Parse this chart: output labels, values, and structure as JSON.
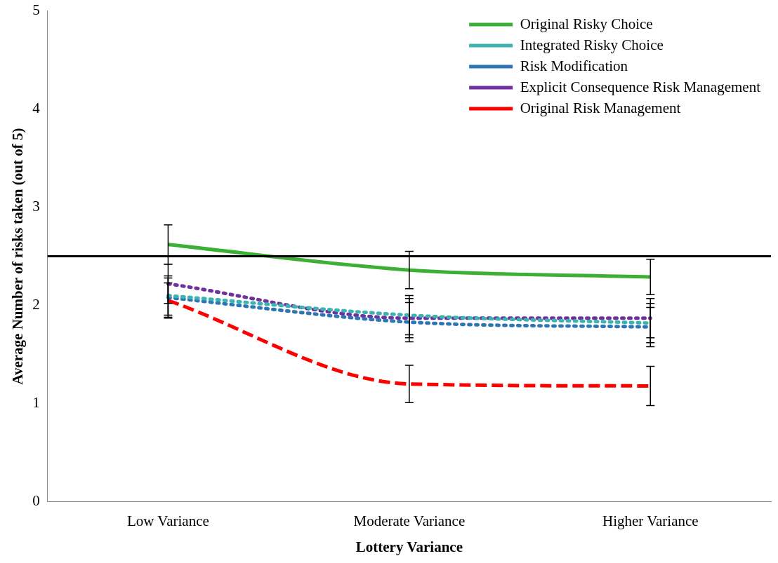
{
  "chart_data": {
    "type": "line",
    "xlabel": "Lottery Variance",
    "ylabel": "Average Number of risks taken (out of 5)",
    "categories": [
      "Low Variance",
      "Moderate Variance",
      "Higher Variance"
    ],
    "series": [
      {
        "name": "Original Risky Choice",
        "color": "#3cb034",
        "values": [
          2.62,
          2.36,
          2.29
        ],
        "errors": [
          0.2,
          0.19,
          0.18
        ],
        "line_style": "solid"
      },
      {
        "name": "Integrated Risky Choice",
        "color": "#3bb3b0",
        "values": [
          2.1,
          1.9,
          1.82
        ],
        "errors": [
          0.2,
          0.2,
          0.2
        ],
        "line_style": "dotted"
      },
      {
        "name": "Risk Modification",
        "color": "#2e75b6",
        "values": [
          2.08,
          1.83,
          1.78
        ],
        "errors": [
          0.2,
          0.2,
          0.2
        ],
        "line_style": "dotted"
      },
      {
        "name": "Explicit Consequence Risk Management",
        "color": "#7030a0",
        "values": [
          2.22,
          1.87,
          1.87
        ],
        "errors": [
          0.2,
          0.2,
          0.2
        ],
        "line_style": "dotted"
      },
      {
        "name": "Original Risk Management",
        "color": "#ff0000",
        "values": [
          2.05,
          1.2,
          1.18
        ],
        "errors": [
          0.18,
          0.19,
          0.2
        ],
        "line_style": "dashed"
      }
    ],
    "ylim": [
      0,
      5
    ],
    "yticks": [
      0,
      1,
      2,
      3,
      4,
      5
    ],
    "grid": false,
    "legend": "top right",
    "marker": "none",
    "ref_lines": [
      {
        "axis": "y",
        "value": 2.5,
        "color": "#000000"
      }
    ]
  }
}
